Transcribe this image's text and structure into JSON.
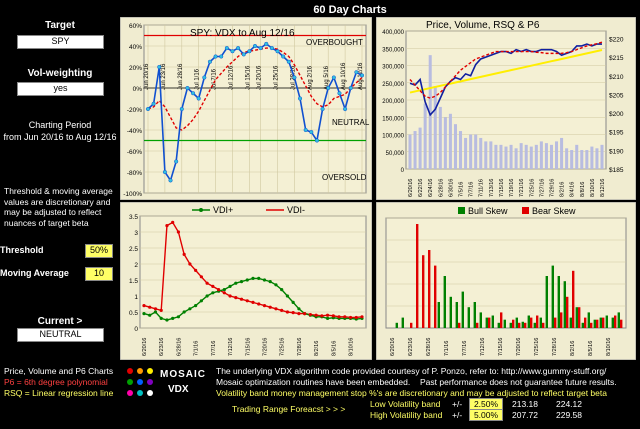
{
  "page_title": "60 Day Charts",
  "left": {
    "target_label": "Target",
    "target_value": "SPY",
    "vol_label": "Vol-weighting",
    "vol_value": "yes",
    "period_label": "Charting Period",
    "period_value": "from Jun 20/16 to Aug 12/16",
    "note": "Threshold & moving average values are discretionary and may be adjusted to reflect nuances of target beta",
    "threshold_label": "Threshold",
    "threshold_value": "50%",
    "ma_label": "Moving Average",
    "ma_value": "10",
    "current_label": "Current >",
    "current_value": "NEUTRAL"
  },
  "legend_notes": {
    "line1": "Price, Volume and P6 Charts",
    "line2": "P6 = 6th degree polynomial",
    "line3": "RSQ = Linear regression line"
  },
  "logo": {
    "text": "MOSAIC",
    "sub": "VDX"
  },
  "footer": {
    "credit": "The underlying VDX algorithm code provided courtesy of P. Ponzo, refer to:  http://www.gummy-stuff.org/",
    "mosaic_note": "Mosaic optimization routines have been embedded.",
    "past_perf": "Past performance does not guarantee future results.",
    "vol_note": "Volatility band money management stop %'s are discretionary and may be adjusted to reflect target beta",
    "forecast_label": "Trading Range Foreacst > > >",
    "low_label": "Low Volatility band",
    "high_label": "High Volatility band",
    "pm": "+/-",
    "low_pct": "2.50%",
    "low_a": "213.18",
    "low_b": "224.12",
    "high_pct": "5.00%",
    "high_a": "207.72",
    "high_b": "229.58"
  },
  "dates": [
    "6/20/16",
    "6/21/16",
    "6/22/16",
    "6/23/16",
    "6/24/16",
    "6/27/16",
    "6/28/16",
    "6/29/16",
    "6/30/16",
    "7/1/16",
    "7/5/16",
    "7/6/16",
    "7/7/16",
    "7/8/16",
    "7/11/16",
    "7/12/16",
    "7/13/16",
    "7/14/16",
    "7/15/16",
    "7/18/16",
    "7/19/16",
    "7/20/16",
    "7/21/16",
    "7/22/16",
    "7/25/16",
    "7/26/16",
    "7/27/16",
    "7/28/16",
    "7/29/16",
    "8/1/16",
    "8/2/16",
    "8/3/16",
    "8/4/16",
    "8/5/16",
    "8/8/16",
    "8/9/16",
    "8/10/16",
    "8/11/16",
    "8/12/16"
  ],
  "chart_data": [
    {
      "type": "line",
      "title": "SPY:   VDX to Aug 12/16",
      "annotations": [
        "OVERBOUGHT",
        "NEUTRAL",
        "OVERSOLD"
      ],
      "ylim": [
        -100,
        60
      ],
      "y_ticks": [
        "60%",
        "40%",
        "20%",
        "0%",
        "-20%",
        "-40%",
        "-60%",
        "-80%",
        "-100%"
      ],
      "threshold_upper": 50,
      "threshold_lower": -50,
      "x_ticks": [
        "Jun 20/16",
        "Jun 23/16",
        "Jun 28/16",
        "Jul 1/16",
        "Jul 7/16",
        "Jul 12/16",
        "Jul 15/16",
        "Jul 20/16",
        "Jul 25/16",
        "Jul 28/16",
        "Aug 2/16",
        "Aug 5/16",
        "Aug 10/16",
        "Aug 12/16"
      ],
      "series": [
        {
          "values": [
            -20,
            -15,
            20,
            -80,
            -88,
            -70,
            -20,
            0,
            -5,
            -10,
            10,
            25,
            30,
            30,
            38,
            35,
            38,
            32,
            35,
            40,
            38,
            42,
            38,
            35,
            30,
            25,
            10,
            -10,
            -40,
            -42,
            -50,
            -20,
            0,
            10,
            -5,
            -20,
            0,
            15,
            12
          ]
        },
        {
          "values": [
            -20,
            -18,
            -12,
            -18,
            -28,
            -38,
            -40,
            -36,
            -30,
            -22,
            -12,
            -2,
            8,
            14,
            20,
            25,
            30,
            34,
            35,
            36,
            37,
            38,
            38,
            37,
            34,
            30,
            22,
            12,
            2,
            -8,
            -15,
            -18,
            -16,
            -10,
            -8,
            -6,
            0,
            5,
            10
          ]
        }
      ]
    },
    {
      "type": "line",
      "title": "Price,  Volume, RSQ & P6",
      "y_left_ticks": [
        "400,000",
        "350,000",
        "300,000",
        "250,000",
        "200,000",
        "150,000",
        "100,000",
        "50,000",
        "0"
      ],
      "y_right_ticks": [
        "$220",
        "$215",
        "$210",
        "$205",
        "$200",
        "$195",
        "$190",
        "$185"
      ],
      "ylim_right": [
        185,
        222
      ],
      "ylim_left": [
        0,
        400000
      ],
      "series": [
        {
          "name": "price",
          "values": [
            208,
            207.5,
            209,
            203,
            199.5,
            201,
            204,
            207,
            208.5,
            209.5,
            209,
            210.5,
            210,
            213,
            214.5,
            215,
            215.5,
            216,
            216.5,
            216.5,
            216,
            217,
            216.5,
            217,
            216.5,
            216.5,
            217,
            217,
            217,
            216.5,
            215.5,
            216,
            216.5,
            218,
            218,
            218.5,
            218,
            218.5,
            218.5
          ]
        },
        {
          "name": "p6",
          "values": [
            209,
            207.5,
            206,
            204.5,
            204,
            204.5,
            205.5,
            207,
            208.5,
            210,
            211.5,
            212.5,
            213.5,
            214.5,
            215,
            215.5,
            216,
            216.5,
            216.5,
            216.5,
            216.5,
            216.5,
            216.5,
            216.5,
            216.5,
            216.3,
            216.2,
            216,
            216,
            216,
            216,
            216.2,
            216.5,
            217,
            217.5,
            218,
            218.3,
            218.6,
            219
          ]
        },
        {
          "name": "rsq",
          "values": [
            205.5,
            205.8,
            206.1,
            206.4,
            206.7,
            207,
            207.3,
            207.6,
            207.9,
            208.2,
            208.5,
            208.8,
            209.1,
            209.4,
            209.7,
            210,
            210.3,
            210.6,
            210.9,
            211.2,
            211.5,
            211.8,
            212.1,
            212.4,
            212.7,
            213,
            213.3,
            213.6,
            213.9,
            214.2,
            214.5,
            214.8,
            215.1,
            215.4,
            215.7,
            216,
            216.3,
            216.6,
            216.9
          ]
        }
      ],
      "volume": [
        100000,
        110000,
        120000,
        190000,
        330000,
        240000,
        180000,
        150000,
        160000,
        130000,
        110000,
        90000,
        100000,
        100000,
        90000,
        80000,
        80000,
        70000,
        70000,
        65000,
        70000,
        60000,
        75000,
        70000,
        65000,
        70000,
        80000,
        75000,
        70000,
        80000,
        90000,
        60000,
        55000,
        70000,
        55000,
        55000,
        65000,
        60000,
        70000
      ]
    },
    {
      "type": "line",
      "legend": [
        "VDI+",
        "VDI-"
      ],
      "ylim": [
        0,
        3.5
      ],
      "y_ticks": [
        "3.5",
        "3",
        "2.5",
        "2",
        "1.5",
        "1",
        "0.5",
        "0"
      ],
      "series": [
        {
          "name": "VDI+",
          "values": [
            0.45,
            0.4,
            0.5,
            0.3,
            0.25,
            0.3,
            0.35,
            0.5,
            0.6,
            0.7,
            0.85,
            1.0,
            1.1,
            1.15,
            1.2,
            1.3,
            1.4,
            1.45,
            1.5,
            1.55,
            1.55,
            1.5,
            1.45,
            1.35,
            1.2,
            1.0,
            0.8,
            0.6,
            0.45,
            0.4,
            0.35,
            0.35,
            0.3,
            0.32,
            0.3,
            0.3,
            0.3,
            0.28,
            0.3
          ]
        },
        {
          "name": "VDI-",
          "values": [
            0.7,
            0.65,
            0.6,
            0.55,
            3.2,
            3.3,
            3.0,
            2.3,
            2.0,
            1.8,
            1.6,
            1.4,
            1.3,
            1.2,
            1.1,
            1.0,
            0.95,
            0.9,
            0.85,
            0.8,
            0.75,
            0.7,
            0.65,
            0.6,
            0.55,
            0.5,
            0.48,
            0.45,
            0.45,
            0.42,
            0.4,
            0.38,
            0.4,
            0.38,
            0.35,
            0.35,
            0.33,
            0.33,
            0.35
          ]
        }
      ]
    },
    {
      "type": "bar",
      "legend": [
        "Bull Skew",
        "Bear Skew"
      ],
      "bull": [
        0,
        0.05,
        0.1,
        0,
        0,
        0,
        0,
        0,
        0.25,
        0.5,
        0.3,
        0.25,
        0.35,
        0.2,
        0.25,
        0.15,
        0.1,
        0.12,
        0.05,
        0.08,
        0.05,
        0.1,
        0.06,
        0.12,
        0.05,
        0.1,
        0.5,
        0.6,
        0.5,
        0.45,
        0.1,
        0.2,
        0.05,
        0.15,
        0.08,
        0.1,
        0.12,
        0.1,
        0.15
      ],
      "bear": [
        0,
        0,
        0,
        0.05,
        1.0,
        0.7,
        0.75,
        0.6,
        0,
        0,
        0,
        0.05,
        0,
        0,
        0.05,
        0,
        0.1,
        0,
        0.15,
        0,
        0.08,
        0.05,
        0.05,
        0.1,
        0.12,
        0.05,
        0,
        0.1,
        0.15,
        0.3,
        0.55,
        0.2,
        0.1,
        0.05,
        0.08,
        0.1,
        0,
        0.12,
        0.08
      ]
    }
  ],
  "colors": {
    "panel": "#f0ecd0",
    "red": "#e00000",
    "blue": "#1020a0",
    "green": "#008000",
    "yellow": "#ffff00"
  }
}
